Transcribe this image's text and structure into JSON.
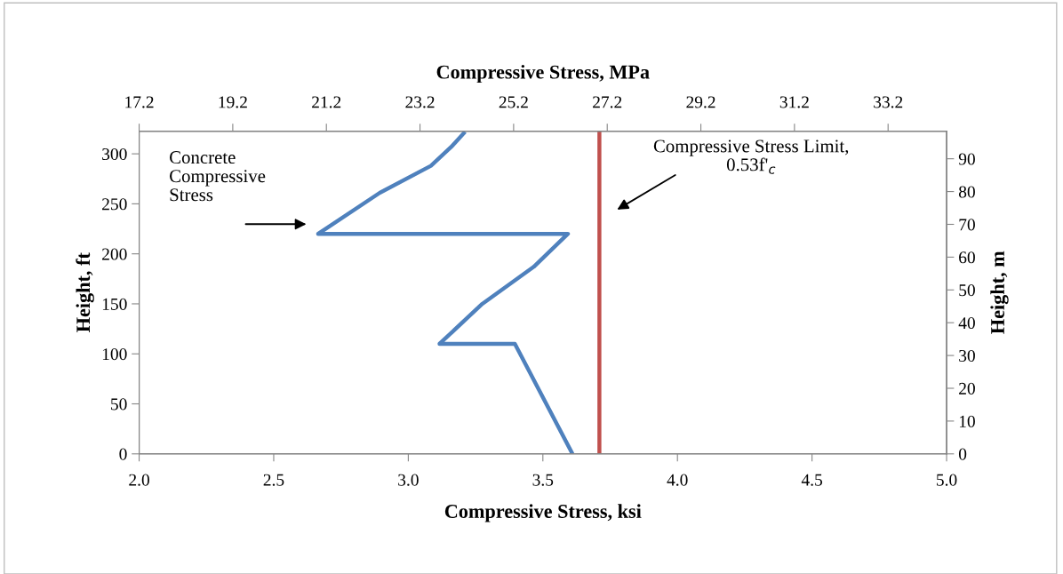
{
  "chart_data": {
    "type": "line",
    "xlabel": "Compressive Stress, ksi",
    "x2label": "Compressive Stress, MPa",
    "ylabel": "Height, ft",
    "y2label": "Height, m",
    "series": [
      {
        "color": "#4f81bd",
        "x": [
          3.61,
          3.396,
          3.116,
          3.275,
          3.466,
          3.593,
          2.665,
          2.894,
          3.084,
          3.16,
          3.211
        ],
        "values": [
          0,
          110,
          110,
          150,
          187,
          220,
          220,
          261,
          288,
          307,
          322
        ]
      }
    ],
    "xlim": [
      2.0,
      5.0
    ],
    "xticks": [
      {
        "value": 2.0,
        "label": "2.0"
      },
      {
        "value": 2.5,
        "label": "2.5"
      },
      {
        "value": 3.0,
        "label": "3.0"
      },
      {
        "value": 3.5,
        "label": "3.5"
      },
      {
        "value": 4.0,
        "label": "4.0"
      },
      {
        "value": 4.5,
        "label": "4.5"
      },
      {
        "value": 5.0,
        "label": "5.0"
      }
    ],
    "x2lim": [
      17.2,
      34.45
    ],
    "x2ticks": [
      17.2,
      19.2,
      21.2,
      23.2,
      25.2,
      27.2,
      29.2,
      31.2,
      33.2
    ],
    "ylim": [
      0,
      322.6
    ],
    "yticks": [
      0,
      50,
      100,
      150,
      200,
      250,
      300
    ],
    "y2lim": [
      0,
      98.4
    ],
    "y2ticks": [
      0,
      10,
      20,
      30,
      40,
      50,
      60,
      70,
      80,
      90
    ],
    "ref_lines": [
      {
        "axis": "x",
        "value": 3.71,
        "color": "#c0504d",
        "line_style": "solid"
      }
    ],
    "annotations": [
      "Concrete\nCompressive\nStress",
      "Compressive Stress Limit,\n0.53f'$_{c}$"
    ],
    "grid": false,
    "line_style": "solid",
    "marker": "none"
  }
}
